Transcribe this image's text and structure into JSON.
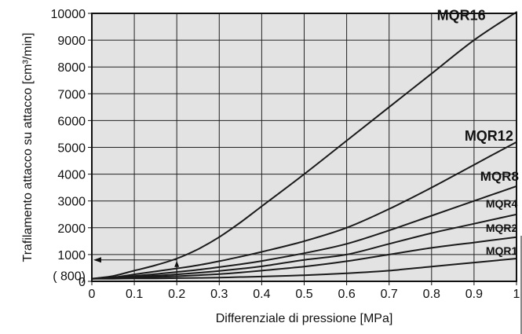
{
  "chart_data": {
    "type": "line",
    "title": "",
    "xlabel": "Differenziale di pressione [MPa]",
    "ylabel": "Trafilamento attacco su attacco [cm³/min]",
    "xlim": [
      0,
      1
    ],
    "ylim": [
      0,
      10000
    ],
    "x_ticks": [
      "0",
      "0.1",
      "0.2",
      "0.3",
      "0.4",
      "0.5",
      "0.6",
      "0.7",
      "0.8",
      "0.9",
      "1"
    ],
    "x_tick_values": [
      0,
      0.1,
      0.2,
      0.3,
      0.4,
      0.5,
      0.6,
      0.7,
      0.8,
      0.9,
      1
    ],
    "y_ticks": [
      "0",
      "1000",
      "2000",
      "3000",
      "4000",
      "5000",
      "6000",
      "7000",
      "8000",
      "9000",
      "10000"
    ],
    "y_tick_values": [
      0,
      1000,
      2000,
      3000,
      4000,
      5000,
      6000,
      7000,
      8000,
      9000,
      10000
    ],
    "grid": true,
    "background_color": "#e3e3e3",
    "line_color": "#1a1a1a",
    "x": [
      0,
      0.05,
      0.1,
      0.15,
      0.2,
      0.25,
      0.3,
      0.35,
      0.4,
      0.5,
      0.6,
      0.7,
      0.8,
      0.9,
      1.0
    ],
    "series": [
      {
        "name": "MQR16",
        "values": [
          100,
          200,
          400,
          600,
          850,
          1200,
          1650,
          2200,
          2800,
          4000,
          5250,
          6500,
          7750,
          9000,
          10050
        ]
      },
      {
        "name": "MQR12",
        "values": [
          100,
          150,
          260,
          370,
          480,
          600,
          750,
          920,
          1100,
          1500,
          2000,
          2700,
          3500,
          4350,
          5200
        ]
      },
      {
        "name": "MQR8",
        "values": [
          100,
          130,
          200,
          270,
          350,
          430,
          530,
          640,
          760,
          1050,
          1400,
          1900,
          2450,
          3000,
          3550
        ]
      },
      {
        "name": "MQR4",
        "values": [
          100,
          120,
          160,
          210,
          260,
          320,
          390,
          470,
          560,
          800,
          1000,
          1400,
          1800,
          2150,
          2500
        ]
      },
      {
        "name": "MQR2",
        "values": [
          100,
          110,
          130,
          160,
          190,
          230,
          270,
          330,
          400,
          550,
          750,
          1000,
          1250,
          1450,
          1650
        ]
      },
      {
        "name": "MQR1",
        "values": [
          100,
          100,
          110,
          110,
          120,
          130,
          140,
          160,
          180,
          230,
          300,
          400,
          550,
          700,
          850
        ]
      }
    ],
    "annotation": {
      "label": "( 800)",
      "x": 0.2,
      "y": 800
    }
  }
}
